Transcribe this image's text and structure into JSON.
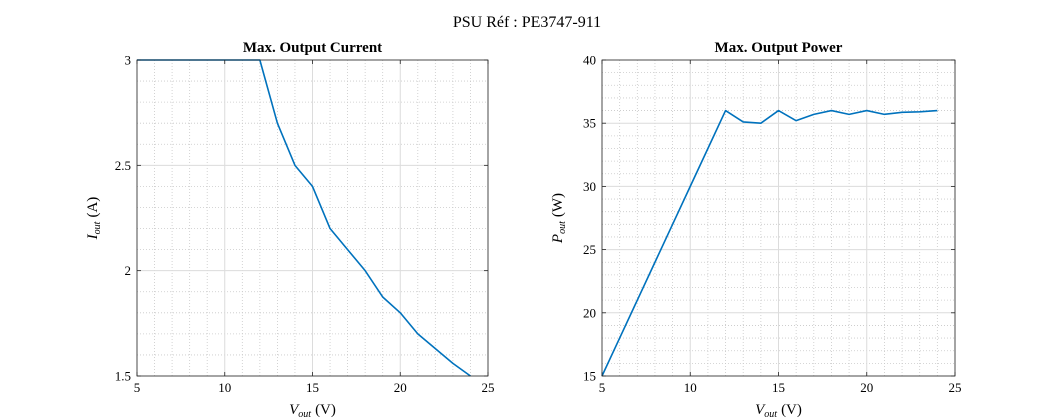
{
  "figure": {
    "title": "PSU Réf : PE3747-911"
  },
  "colors": {
    "line": "#0072BD",
    "major_grid": "#dcdcdc",
    "minor_grid": "#c8c8c8",
    "axis": "#262626"
  },
  "chart_data": [
    {
      "type": "line",
      "title": "Max. Output Current",
      "xlabel": {
        "main": "V",
        "sub": "out",
        "unit": "(V)"
      },
      "ylabel": {
        "main": "I",
        "sub": "out",
        "unit": "(A)"
      },
      "xlim": [
        5,
        25
      ],
      "ylim": [
        1.5,
        3
      ],
      "xticks": [
        5,
        10,
        15,
        20,
        25
      ],
      "yticks": [
        1.5,
        2,
        2.5,
        3
      ],
      "xtick_labels": [
        "5",
        "10",
        "15",
        "20",
        "25"
      ],
      "ytick_labels": [
        "1.5",
        "2",
        "2.5",
        "3"
      ],
      "grid": true,
      "minor_grid": true,
      "series": [
        {
          "name": "Iout",
          "x": [
            5,
            6,
            7,
            8,
            9,
            10,
            11,
            12,
            13,
            14,
            15,
            16,
            17,
            18,
            19,
            20,
            21,
            22,
            23,
            24
          ],
          "values": [
            3,
            3,
            3,
            3,
            3,
            3,
            3,
            3,
            2.7,
            2.5,
            2.4,
            2.2,
            2.1,
            2.0,
            1.875,
            1.8,
            1.7,
            1.63,
            1.56,
            1.5
          ]
        }
      ]
    },
    {
      "type": "line",
      "title": "Max. Output Power",
      "xlabel": {
        "main": "V",
        "sub": "out",
        "unit": "(V)"
      },
      "ylabel": {
        "main": "P",
        "sub": "out",
        "unit": "(W)"
      },
      "xlim": [
        5,
        25
      ],
      "ylim": [
        15,
        40
      ],
      "xticks": [
        5,
        10,
        15,
        20,
        25
      ],
      "yticks": [
        15,
        20,
        25,
        30,
        35,
        40
      ],
      "xtick_labels": [
        "5",
        "10",
        "15",
        "20",
        "25"
      ],
      "ytick_labels": [
        "15",
        "20",
        "25",
        "30",
        "35",
        "40"
      ],
      "grid": true,
      "minor_grid": true,
      "series": [
        {
          "name": "Pout",
          "x": [
            5,
            6,
            7,
            8,
            9,
            10,
            11,
            12,
            13,
            14,
            15,
            16,
            17,
            18,
            19,
            20,
            21,
            22,
            23,
            24
          ],
          "values": [
            15,
            18,
            21,
            24,
            27,
            30,
            33,
            36,
            35.1,
            35.0,
            36.0,
            35.2,
            35.7,
            36.0,
            35.7,
            36.0,
            35.7,
            35.86,
            35.9,
            36.0
          ]
        }
      ]
    }
  ]
}
